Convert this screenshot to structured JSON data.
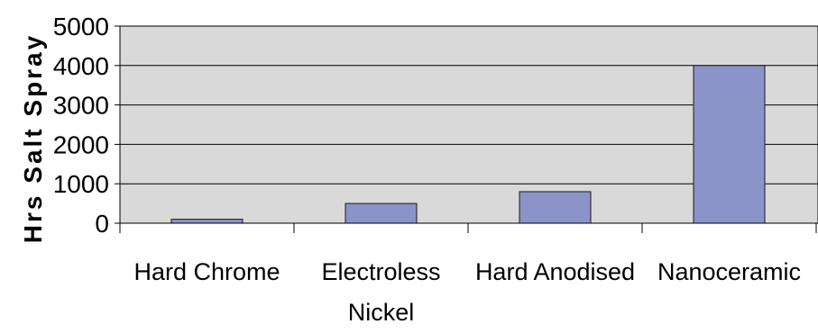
{
  "chart_data": {
    "type": "bar",
    "title": "",
    "xlabel": "",
    "ylabel": "Hrs Salt Spray",
    "categories": [
      [
        "Hard Chrome"
      ],
      [
        "Electroless",
        "Nickel"
      ],
      [
        "Hard Anodised"
      ],
      [
        "Nanoceramic"
      ]
    ],
    "values": [
      100,
      500,
      800,
      4000
    ],
    "ylim": [
      0,
      5000
    ],
    "yticks": [
      "0",
      "1000",
      "2000",
      "3000",
      "4000",
      "5000"
    ],
    "grid": true,
    "legend": "none",
    "colors": {
      "plot_background": "#d9d9d9",
      "bar_fill": "#8b93c8",
      "bar_stroke": "#1a1a1a",
      "gridline": "#000000",
      "axis": "#000000",
      "text": "#000000"
    }
  }
}
